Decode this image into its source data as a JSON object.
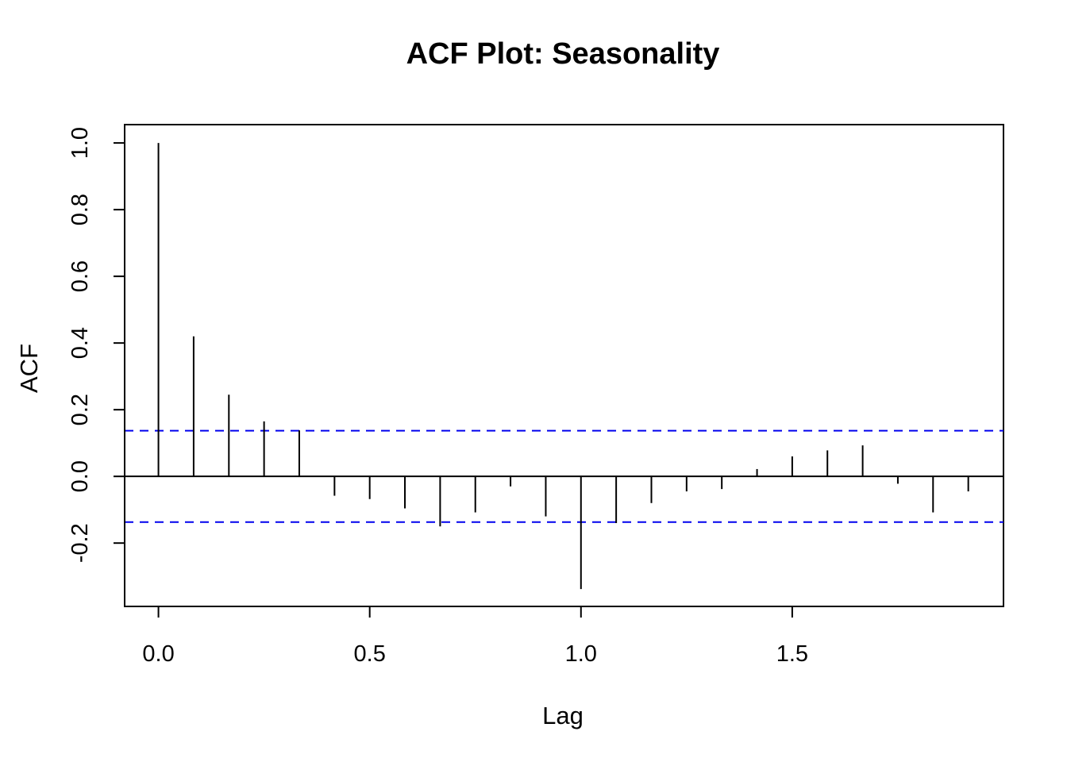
{
  "chart_data": {
    "type": "bar",
    "subtype": "acf-spikes",
    "title": "ACF Plot: Seasonality",
    "xlabel": "Lag",
    "ylabel": "ACF",
    "xlim": [
      -0.08,
      2.0
    ],
    "ylim": [
      -0.39,
      1.055
    ],
    "x_ticks": [
      0.0,
      0.5,
      1.0,
      1.5
    ],
    "x_tick_labels": [
      "0.0",
      "0.5",
      "1.0",
      "1.5"
    ],
    "y_ticks": [
      -0.2,
      0.0,
      0.2,
      0.4,
      0.6,
      0.8,
      1.0
    ],
    "y_tick_labels": [
      "-0.2",
      "0.0",
      "0.2",
      "0.4",
      "0.6",
      "0.8",
      "1.0"
    ],
    "confidence_bounds": [
      0.137,
      -0.137
    ],
    "confidence_color": "#0000ee",
    "spike_color": "#000000",
    "series": [
      {
        "x": [
          0.0,
          0.0833,
          0.1667,
          0.25,
          0.3333,
          0.4167,
          0.5,
          0.5833,
          0.6667,
          0.75,
          0.8333,
          0.9167,
          1.0,
          1.0833,
          1.1667,
          1.25,
          1.3333,
          1.4167,
          1.5,
          1.5833,
          1.6667,
          1.75,
          1.8333,
          1.9167
        ],
        "values": [
          1.0,
          0.42,
          0.245,
          0.165,
          0.138,
          -0.058,
          -0.068,
          -0.096,
          -0.15,
          -0.108,
          -0.03,
          -0.12,
          -0.338,
          -0.14,
          -0.08,
          -0.045,
          -0.038,
          0.022,
          0.06,
          0.078,
          0.093,
          -0.022,
          -0.108,
          -0.045
        ]
      }
    ],
    "grid": false,
    "legend": "none"
  }
}
